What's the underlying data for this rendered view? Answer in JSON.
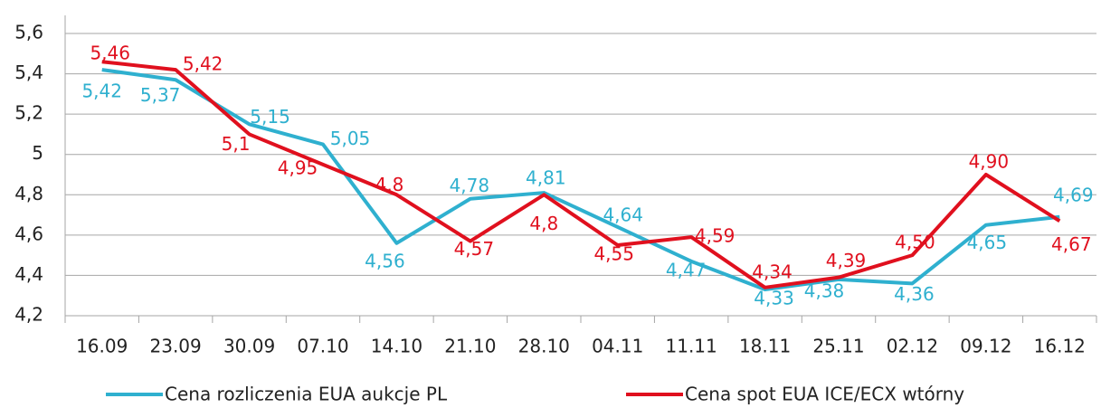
{
  "chart_data": {
    "type": "line",
    "categories": [
      "16.09",
      "23.09",
      "30.09",
      "07.10",
      "14.10",
      "21.10",
      "28.10",
      "04.11",
      "11.11",
      "18.11",
      "25.11",
      "02.12",
      "09.12",
      "16.12"
    ],
    "series": [
      {
        "name": "Cena rozliczenia EUA  aukcje  PL",
        "color": "#2fb0cf",
        "values": [
          5.42,
          5.37,
          5.15,
          5.05,
          4.56,
          4.78,
          4.81,
          4.64,
          4.47,
          4.33,
          4.38,
          4.36,
          4.65,
          4.69
        ],
        "value_labels": [
          "5,42",
          "5,37",
          "5,15",
          "5,05",
          "4,56",
          "4,78",
          "4,81",
          "4,64",
          "4,47",
          "4,33",
          "4,38",
          "4,36",
          "4,65",
          "4,69"
        ]
      },
      {
        "name": "Cena spot EUA  ICE/ECX  wtórny",
        "color": "#e0101e",
        "values": [
          5.46,
          5.42,
          5.1,
          4.95,
          4.8,
          4.57,
          4.8,
          4.55,
          4.59,
          4.34,
          4.39,
          4.5,
          4.9,
          4.67
        ],
        "value_labels": [
          "5,46",
          "5,42",
          "5,1",
          "4,95",
          "4,8",
          "4,57",
          "4,8",
          "4,55",
          "4,59",
          "4,34",
          "4,39",
          "4,50",
          "4,90",
          "4,67"
        ]
      }
    ],
    "ylim": [
      4.2,
      5.6
    ],
    "yticks": [
      {
        "value": 4.2,
        "label": "4,2"
      },
      {
        "value": 4.4,
        "label": "4,4"
      },
      {
        "value": 4.6,
        "label": "4,6"
      },
      {
        "value": 4.8,
        "label": "4,8"
      },
      5,
      {
        "value": 5.2,
        "label": "5,2"
      },
      {
        "value": 5.4,
        "label": "5,4"
      },
      {
        "value": 5.6,
        "label": "5,6"
      }
    ],
    "grid": true
  }
}
